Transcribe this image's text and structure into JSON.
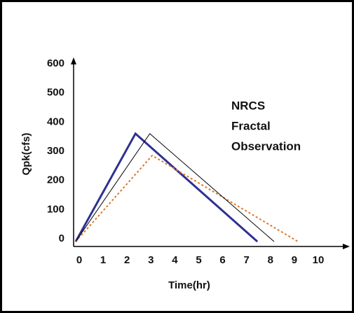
{
  "chart_data": {
    "type": "line",
    "x_label": "Time(hr)",
    "y_label": "Qpk(cfs)",
    "xlim": [
      0,
      10
    ],
    "ylim": [
      0,
      600
    ],
    "xticks": [
      0,
      1,
      2,
      3,
      4,
      5,
      6,
      7,
      8,
      9,
      10
    ],
    "yticks": [
      0,
      100,
      200,
      300,
      400,
      500,
      600
    ],
    "series": [
      {
        "name": "NRCS",
        "color": "#2e3192",
        "x": [
          0,
          2.5,
          7.6
        ],
        "values": [
          0,
          370,
          0
        ]
      },
      {
        "name": "Fractal",
        "color": "#e0782c",
        "x": [
          0,
          3.2,
          9.3
        ],
        "values": [
          0,
          295,
          0
        ]
      },
      {
        "name": "Observation",
        "color": "#000000",
        "x": [
          0,
          3.1,
          8.3
        ],
        "values": [
          0,
          370,
          0
        ]
      }
    ]
  }
}
